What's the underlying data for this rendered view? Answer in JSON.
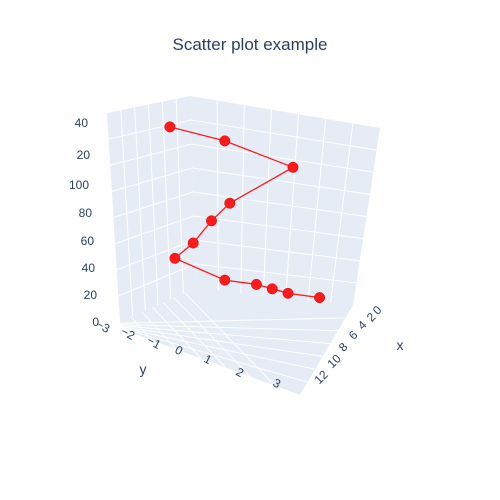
{
  "chart_data": {
    "type": "scatter3d",
    "title": "Scatter plot example",
    "axes": {
      "x": {
        "label": "x",
        "ticks": [
          "0",
          "2",
          "4",
          "6",
          "8",
          "10",
          "12"
        ]
      },
      "y": {
        "label": "y",
        "ticks": [
          "−3",
          "−2",
          "−1",
          "0",
          "1",
          "2",
          "3"
        ]
      },
      "z": {
        "label": "",
        "ticks": [
          "0",
          "20",
          "40",
          "60",
          "80",
          "100",
          "20",
          "40"
        ]
      }
    },
    "series": [
      {
        "mode": "lines+markers",
        "color": "#ff1a1a",
        "points": [
          {
            "x": 12,
            "y": 3,
            "z": 0
          },
          {
            "x": 10,
            "y": 2,
            "z": 4
          },
          {
            "x": 9,
            "y": 1.5,
            "z": 8
          },
          {
            "x": 8,
            "y": 1,
            "z": 12
          },
          {
            "x": 6,
            "y": 0,
            "z": 16
          },
          {
            "x": 3,
            "y": -2,
            "z": 36
          },
          {
            "x": 4,
            "y": -1,
            "z": 48
          },
          {
            "x": 5,
            "y": 0,
            "z": 66
          },
          {
            "x": 6,
            "y": 1,
            "z": 80
          },
          {
            "x": 10,
            "y": 3,
            "z": 110
          },
          {
            "x": 6,
            "y": 0,
            "z": 135
          },
          {
            "x": 3,
            "y": -3,
            "z": 150
          }
        ]
      }
    ],
    "grid": true,
    "background": "#e5ecf6",
    "gridColor": "#ffffff"
  }
}
